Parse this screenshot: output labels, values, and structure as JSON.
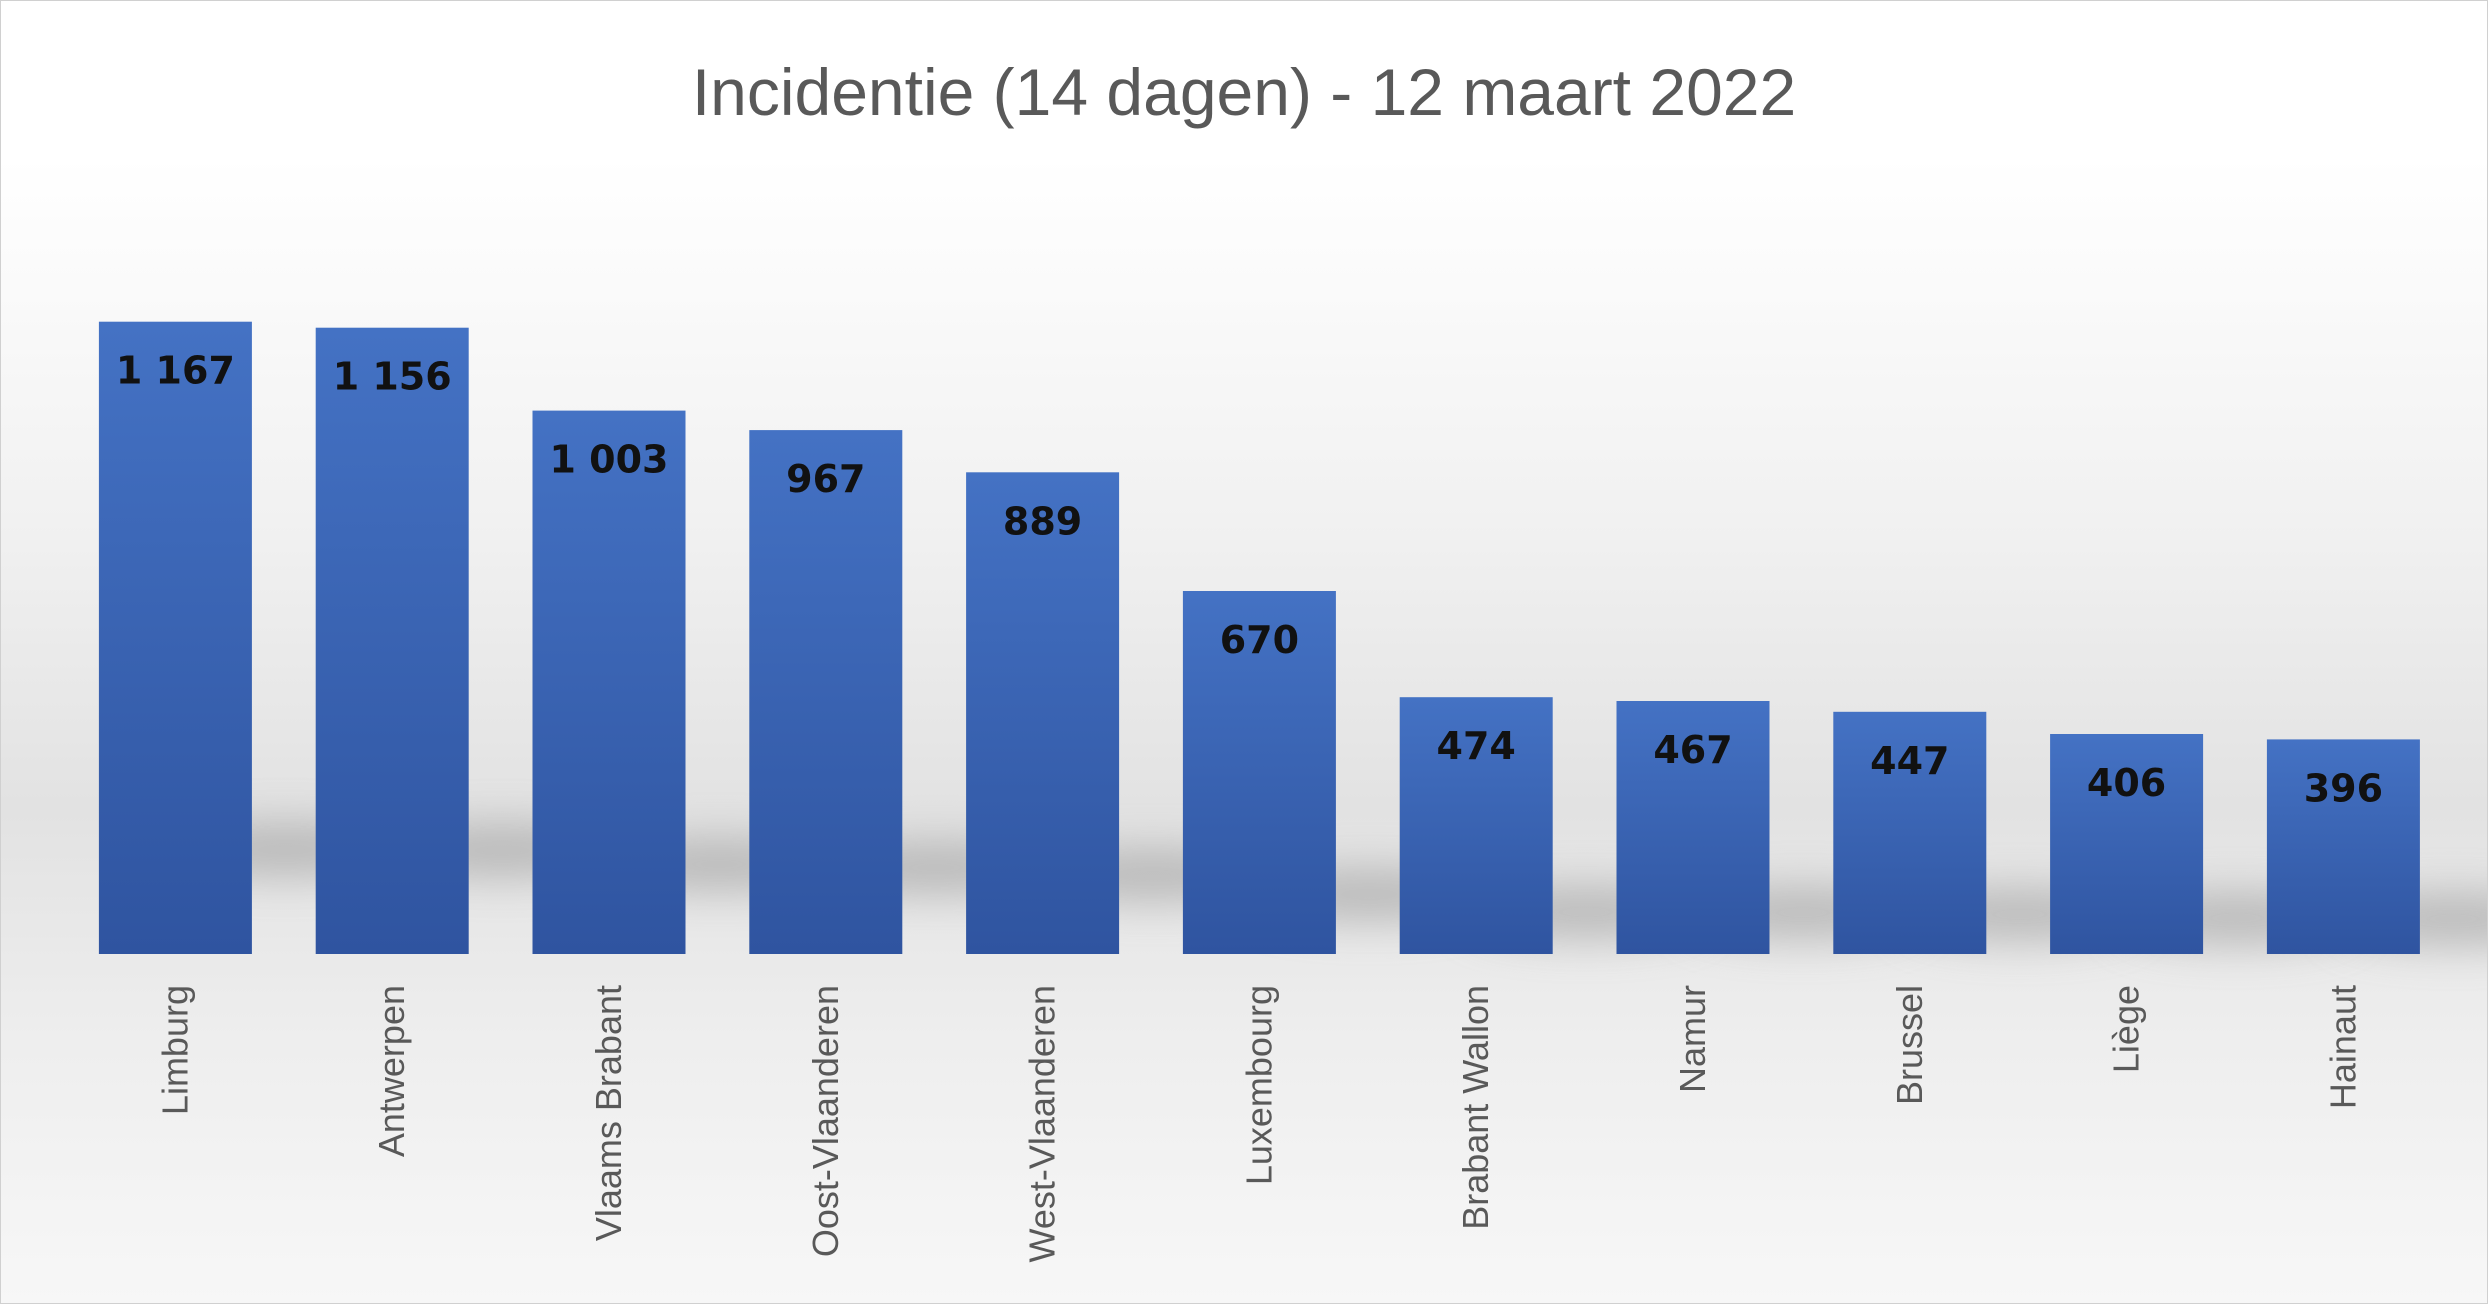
{
  "chart_data": {
    "type": "bar",
    "title": "Incidentie (14 dagen) - 12 maart 2022",
    "categories": [
      "Limburg",
      "Antwerpen",
      "Vlaams Brabant",
      "Oost-Vlaanderen",
      "West-Vlaanderen",
      "Luxembourg",
      "Brabant Wallon",
      "Namur",
      "Brussel",
      "Liège",
      "Hainaut"
    ],
    "values": [
      1167,
      1156,
      1003,
      967,
      889,
      670,
      474,
      467,
      447,
      406,
      396
    ],
    "value_labels": [
      "1 167",
      "1 156",
      "1 003",
      "967",
      "889",
      "670",
      "474",
      "467",
      "447",
      "406",
      "396"
    ],
    "xlabel": "",
    "ylabel": "",
    "ylim": [
      0,
      1400
    ],
    "grid": false,
    "legend": "none",
    "colors": {
      "bar_top": "#4472C4",
      "bar_bottom": "#2F54A0",
      "title": "#595959",
      "labels": "#111111"
    }
  }
}
